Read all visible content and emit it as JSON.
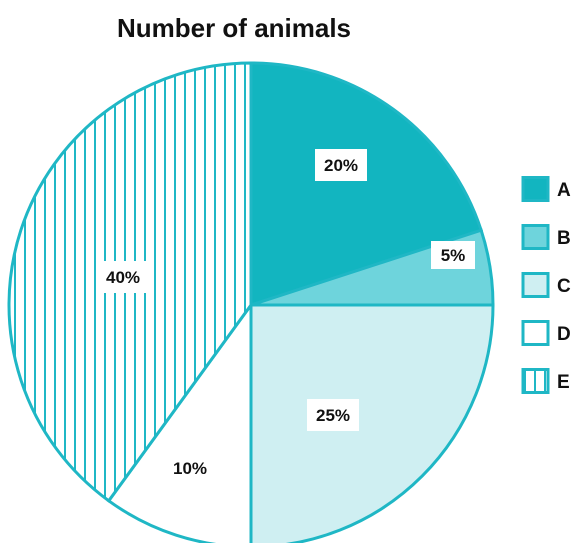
{
  "chart_data": {
    "type": "pie",
    "title": "Number of animals",
    "categories": [
      "A",
      "B",
      "C",
      "D",
      "E"
    ],
    "values": [
      20,
      5,
      25,
      10,
      40
    ],
    "data_labels": [
      "20%",
      "5%",
      "25%",
      "10%",
      "40%"
    ],
    "legend_position": "right",
    "series": [
      {
        "name": "A",
        "value": 20,
        "label": "20%",
        "pattern": "solid"
      },
      {
        "name": "B",
        "value": 5,
        "label": "5%",
        "pattern": "solid"
      },
      {
        "name": "C",
        "value": 25,
        "label": "25%",
        "pattern": "solid"
      },
      {
        "name": "D",
        "value": 10,
        "label": "10%",
        "pattern": "none"
      },
      {
        "name": "E",
        "value": 40,
        "label": "40%",
        "pattern": "vertical-stripes"
      }
    ]
  },
  "colors": {
    "outline": "#1fb7c5",
    "A": "#12b5c0",
    "B": "#6ed4dc",
    "C": "#cfeff2",
    "D": "#ffffff",
    "E_stripe": "#1fb7c5",
    "label_box": "#ffffff",
    "text": "#111111"
  }
}
